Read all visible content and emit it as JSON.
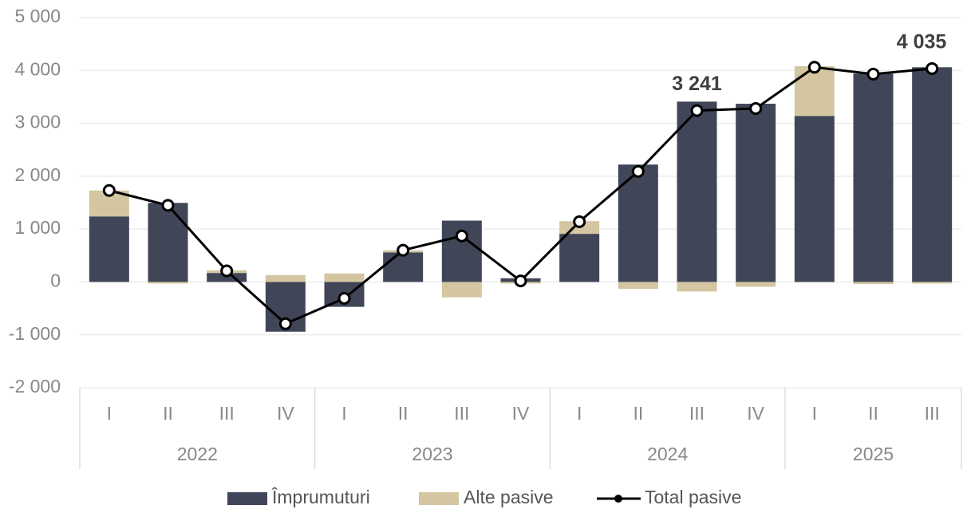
{
  "chart_data": {
    "type": "bar+line",
    "groups": [
      {
        "name": "2022",
        "categories": [
          "I",
          "II",
          "III",
          "IV"
        ]
      },
      {
        "name": "2023",
        "categories": [
          "I",
          "II",
          "III",
          "IV"
        ]
      },
      {
        "name": "2024",
        "categories": [
          "I",
          "II",
          "III",
          "IV"
        ]
      },
      {
        "name": "2025",
        "categories": [
          "I",
          "II",
          "III"
        ]
      }
    ],
    "series": [
      {
        "name": "Împrumuturi",
        "type": "bar",
        "color": "#404558",
        "values": [
          1240,
          1495,
          170,
          -940,
          -470,
          560,
          1160,
          70,
          910,
          2220,
          3410,
          3370,
          3140,
          3940,
          4060
        ]
      },
      {
        "name": "Alte pasive",
        "type": "bar",
        "color": "#d3c6a0",
        "values": [
          490,
          -30,
          50,
          130,
          160,
          40,
          -290,
          -30,
          240,
          -130,
          -180,
          -90,
          940,
          -40,
          -30
        ]
      },
      {
        "name": "Total pasive",
        "type": "line",
        "color": "#000000",
        "values": [
          1730,
          1450,
          210,
          -790,
          -310,
          600,
          870,
          20,
          1140,
          2090,
          3241,
          3280,
          4060,
          3930,
          4035
        ],
        "value_labels": [
          null,
          null,
          null,
          null,
          null,
          null,
          null,
          null,
          null,
          null,
          "3 241",
          null,
          null,
          null,
          "4 035"
        ]
      }
    ],
    "ylim": [
      -2000,
      5000
    ],
    "yticks": [
      {
        "value": -2000,
        "label": "-2 000"
      },
      {
        "value": -1000,
        "label": "-1 000"
      },
      0,
      {
        "value": 1000,
        "label": "1 000"
      },
      {
        "value": 2000,
        "label": "2 000"
      },
      {
        "value": 3000,
        "label": "3 000"
      },
      {
        "value": 4000,
        "label": "4 000"
      },
      {
        "value": 5000,
        "label": "5 000"
      }
    ],
    "grid": true,
    "legend": "bottom"
  }
}
